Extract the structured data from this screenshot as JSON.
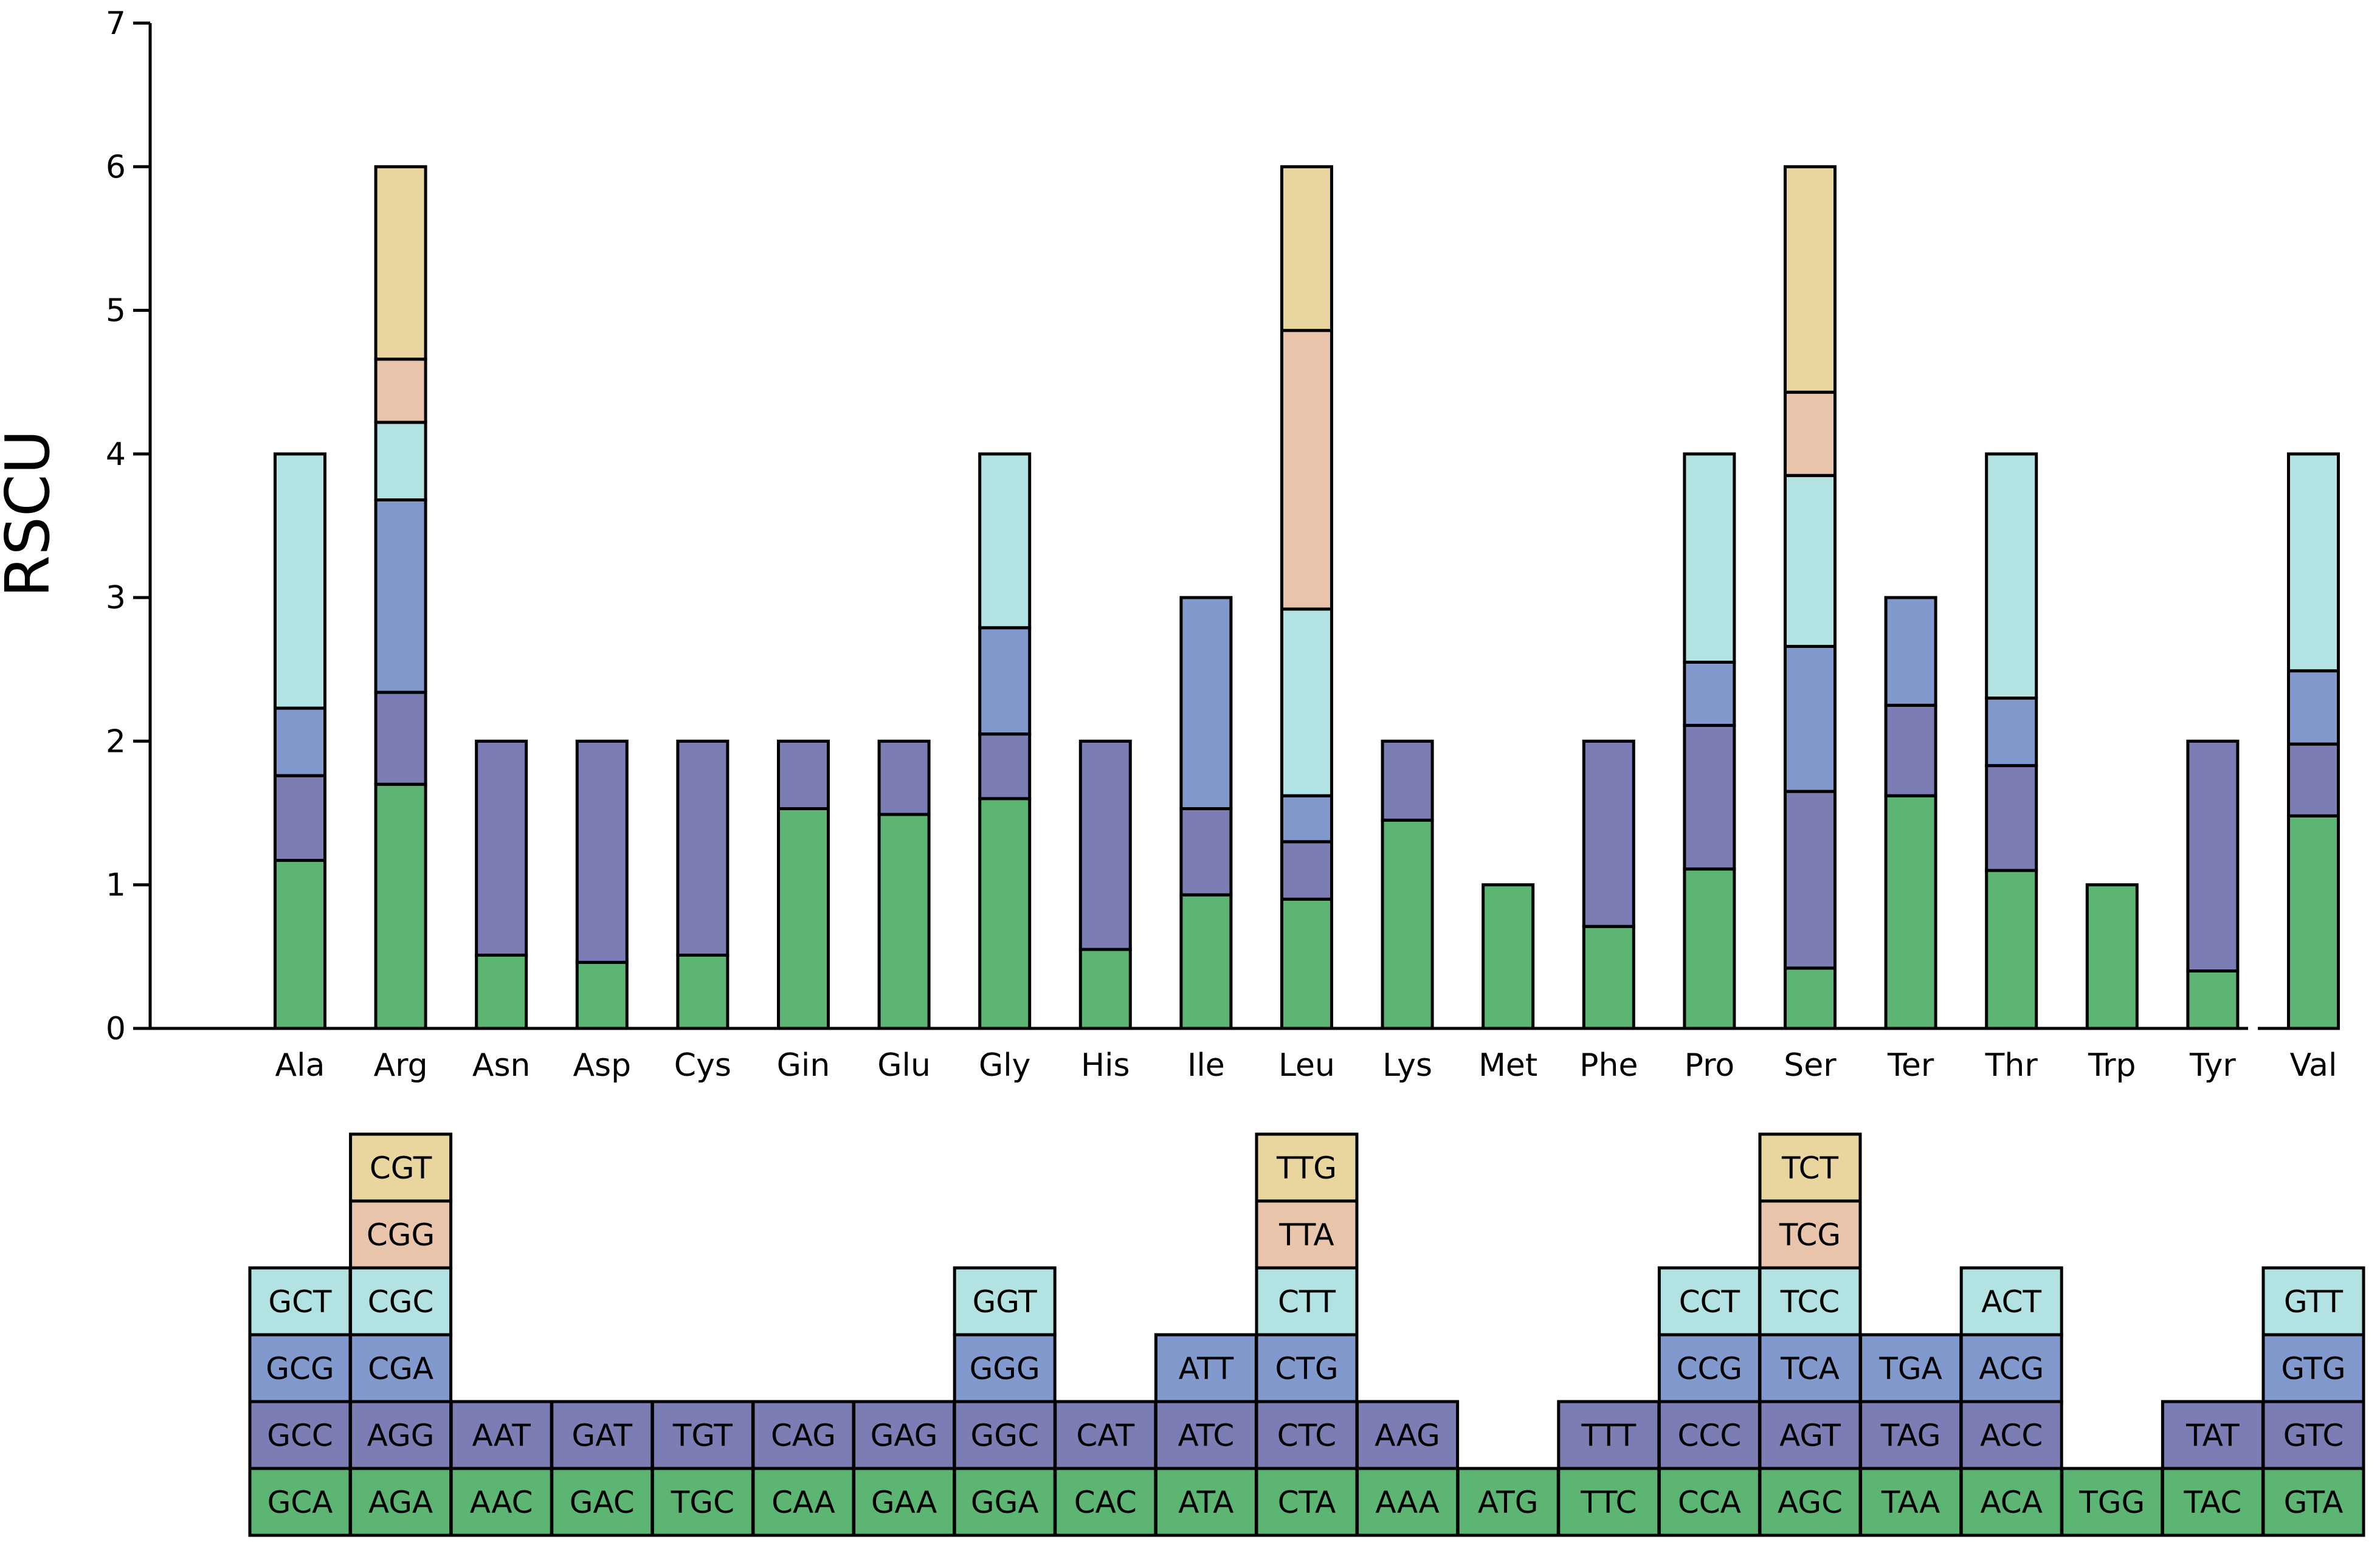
{
  "chart_data": {
    "type": "bar",
    "stacked": true,
    "title": "",
    "xlabel": "",
    "ylabel": "RSCU",
    "ylim": [
      0,
      7
    ],
    "yticks": [
      "0",
      "1",
      "2",
      "3",
      "4",
      "5",
      "6",
      "7"
    ],
    "grid": false,
    "colors": [
      "#5db574",
      "#7c7db4",
      "#8199cc",
      "#b3e2e3",
      "#e8c4aa",
      "#e8d69e"
    ],
    "categories": [
      "Ala",
      "Arg",
      "Asn",
      "Asp",
      "Cys",
      "Gin",
      "Glu",
      "Gly",
      "His",
      "Ile",
      "Leu",
      "Lys",
      "Met",
      "Phe",
      "Pro",
      "Ser",
      "Ter",
      "Thr",
      "Trp",
      "Tyr",
      "Val"
    ],
    "amino_acids": [
      {
        "name": "Ala",
        "codons": [
          "GCA",
          "GCC",
          "GCG",
          "GCT"
        ],
        "values": [
          1.17,
          0.59,
          0.47,
          1.77
        ]
      },
      {
        "name": "Arg",
        "codons": [
          "AGA",
          "AGG",
          "CGA",
          "CGC",
          "CGG",
          "CGT"
        ],
        "values": [
          1.7,
          0.64,
          1.34,
          0.54,
          0.44,
          1.34
        ]
      },
      {
        "name": "Asn",
        "codons": [
          "AAC",
          "AAT"
        ],
        "values": [
          0.51,
          1.49
        ]
      },
      {
        "name": "Asp",
        "codons": [
          "GAC",
          "GAT"
        ],
        "values": [
          0.46,
          1.54
        ]
      },
      {
        "name": "Cys",
        "codons": [
          "TGC",
          "TGT"
        ],
        "values": [
          0.51,
          1.49
        ]
      },
      {
        "name": "Gin",
        "codons": [
          "CAA",
          "CAG"
        ],
        "values": [
          1.53,
          0.47
        ]
      },
      {
        "name": "Glu",
        "codons": [
          "GAA",
          "GAG"
        ],
        "values": [
          1.49,
          0.51
        ]
      },
      {
        "name": "Gly",
        "codons": [
          "GGA",
          "GGC",
          "GGG",
          "GGT"
        ],
        "values": [
          1.6,
          0.45,
          0.74,
          1.21
        ]
      },
      {
        "name": "His",
        "codons": [
          "CAC",
          "CAT"
        ],
        "values": [
          0.55,
          1.45
        ]
      },
      {
        "name": "Ile",
        "codons": [
          "ATA",
          "ATC",
          "ATT"
        ],
        "values": [
          0.93,
          0.6,
          1.47
        ]
      },
      {
        "name": "Leu",
        "codons": [
          "CTA",
          "CTC",
          "CTG",
          "CTT",
          "TTA",
          "TTG"
        ],
        "values": [
          0.9,
          0.4,
          0.32,
          1.3,
          1.94,
          1.14
        ]
      },
      {
        "name": "Lys",
        "codons": [
          "AAA",
          "AAG"
        ],
        "values": [
          1.45,
          0.55
        ]
      },
      {
        "name": "Met",
        "codons": [
          "ATG"
        ],
        "values": [
          1.0
        ]
      },
      {
        "name": "Phe",
        "codons": [
          "TTC",
          "TTT"
        ],
        "values": [
          0.71,
          1.29
        ]
      },
      {
        "name": "Pro",
        "codons": [
          "CCA",
          "CCC",
          "CCG",
          "CCT"
        ],
        "values": [
          1.11,
          1.0,
          0.44,
          1.45
        ]
      },
      {
        "name": "Ser",
        "codons": [
          "AGC",
          "AGT",
          "TCA",
          "TCC",
          "TCG",
          "TCT"
        ],
        "values": [
          0.42,
          1.23,
          1.01,
          1.19,
          0.58,
          1.57
        ]
      },
      {
        "name": "Ter",
        "codons": [
          "TAA",
          "TAG",
          "TGA"
        ],
        "values": [
          1.62,
          0.63,
          0.75
        ]
      },
      {
        "name": "Thr",
        "codons": [
          "ACA",
          "ACC",
          "ACG",
          "ACT"
        ],
        "values": [
          1.1,
          0.73,
          0.47,
          1.7
        ]
      },
      {
        "name": "Trp",
        "codons": [
          "TGG"
        ],
        "values": [
          1.0
        ]
      },
      {
        "name": "Tyr",
        "codons": [
          "TAC",
          "TAT"
        ],
        "values": [
          0.4,
          1.6
        ]
      },
      {
        "name": "Val",
        "codons": [
          "GTA",
          "GTC",
          "GTG",
          "GTT"
        ],
        "values": [
          1.48,
          0.5,
          0.51,
          1.51
        ]
      }
    ]
  }
}
